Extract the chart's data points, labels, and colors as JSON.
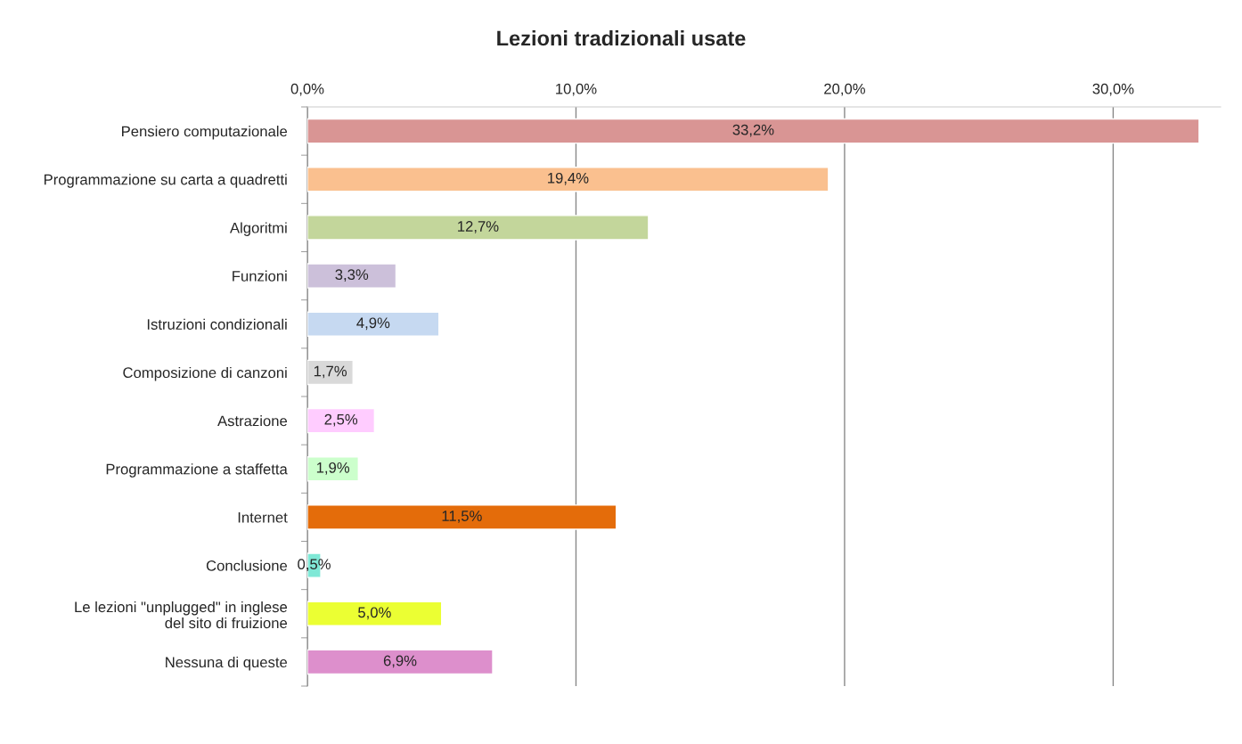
{
  "chart_data": {
    "type": "bar",
    "orientation": "horizontal",
    "title": "Lezioni tradizionali usate",
    "categories": [
      "Pensiero computazionale",
      "Programmazione su carta a quadretti",
      "Algoritmi",
      "Funzioni",
      "Istruzioni condizionali",
      "Composizione di canzoni",
      "Astrazione",
      "Programmazione a staffetta",
      "Internet",
      "Conclusione",
      "Le lezioni \"unplugged\" in inglese\ndel sito di fruizione",
      "Nessuna di queste"
    ],
    "values": [
      33.2,
      19.4,
      12.7,
      3.3,
      4.9,
      1.7,
      2.5,
      1.9,
      11.5,
      0.5,
      5.0,
      6.9
    ],
    "value_labels": [
      "33,2%",
      "19,4%",
      "12,7%",
      "3,3%",
      "4,9%",
      "1,7%",
      "2,5%",
      "1,9%",
      "11,5%",
      "0,5%",
      "5,0%",
      "6,9%"
    ],
    "colors": [
      "#d99594",
      "#fac08f",
      "#c3d69b",
      "#ccc0da",
      "#c6d9f1",
      "#d9d9d9",
      "#ffccff",
      "#ccffcc",
      "#e46c0a",
      "#7fe8d6",
      "#ebff33",
      "#dd8fcc"
    ],
    "xlim": [
      0,
      34
    ],
    "xticks": [
      {
        "value": 0,
        "label": "0,0%"
      },
      {
        "value": 10,
        "label": "10,0%"
      },
      {
        "value": 20,
        "label": "20,0%"
      },
      {
        "value": 30,
        "label": "30,0%"
      }
    ],
    "grid": "x"
  }
}
